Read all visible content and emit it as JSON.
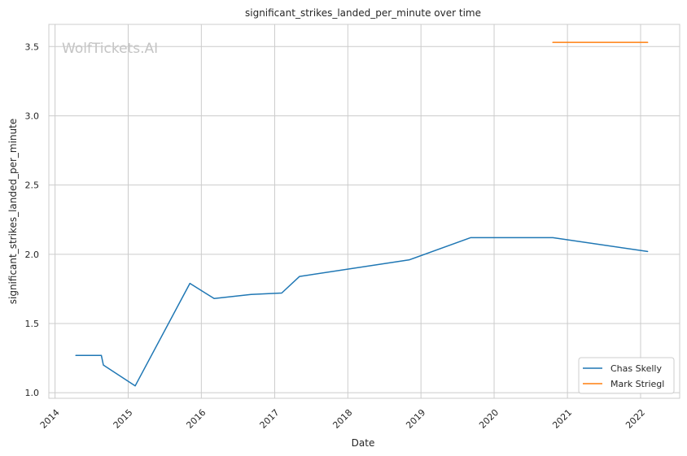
{
  "chart_data": {
    "type": "line",
    "title": "significant_strikes_landed_per_minute over time",
    "xlabel": "Date",
    "ylabel": "significant_strikes_landed_per_minute",
    "xlim": [
      "2013-12-01",
      "2022-07-15"
    ],
    "ylim": [
      0.96,
      3.66
    ],
    "x_ticks": [
      "2014",
      "2015",
      "2016",
      "2017",
      "2018",
      "2019",
      "2020",
      "2021",
      "2022"
    ],
    "y_ticks": [
      "1.0",
      "1.5",
      "2.0",
      "2.5",
      "3.0",
      "3.5"
    ],
    "grid": true,
    "legend_position": "lower-right",
    "watermark": "WolfTickets.AI",
    "series": [
      {
        "name": "Chas Skelly",
        "color": "#1f77b4",
        "points": [
          [
            "2014-04-15",
            1.27
          ],
          [
            "2014-08-20",
            1.27
          ],
          [
            "2014-08-30",
            1.2
          ],
          [
            "2015-02-05",
            1.05
          ],
          [
            "2015-11-05",
            1.79
          ],
          [
            "2016-03-05",
            1.68
          ],
          [
            "2016-09-05",
            1.71
          ],
          [
            "2017-02-05",
            1.72
          ],
          [
            "2017-05-05",
            1.84
          ],
          [
            "2018-11-05",
            1.96
          ],
          [
            "2019-09-05",
            2.12
          ],
          [
            "2020-10-20",
            2.12
          ],
          [
            "2022-02-05",
            2.02
          ]
        ]
      },
      {
        "name": "Mark Striegl",
        "color": "#ff7f0e",
        "points": [
          [
            "2020-10-20",
            3.53
          ],
          [
            "2022-02-05",
            3.53
          ]
        ]
      }
    ]
  }
}
